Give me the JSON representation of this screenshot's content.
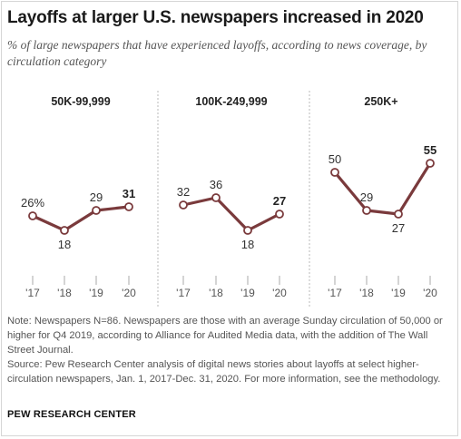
{
  "header": {
    "title": "Layoffs at larger U.S. newspapers increased in 2020",
    "subtitle": "% of large newspapers that have experienced layoffs, according to news coverage, by circulation category"
  },
  "chart_data": [
    {
      "type": "line",
      "title": "50K-99,999",
      "categories": [
        "'17",
        "'18",
        "'19",
        "'20"
      ],
      "series": [
        {
          "values": [
            26,
            18,
            29,
            31
          ]
        }
      ],
      "labels": [
        "26%",
        "18",
        "29",
        "31"
      ],
      "bold_last": true
    },
    {
      "type": "line",
      "title": "100K-249,999",
      "categories": [
        "'17",
        "'18",
        "'19",
        "'20"
      ],
      "series": [
        {
          "values": [
            32,
            36,
            18,
            27
          ]
        }
      ],
      "labels": [
        "32",
        "36",
        "18",
        "27"
      ],
      "bold_last": true
    },
    {
      "type": "line",
      "title": "250K+",
      "categories": [
        "'17",
        "'18",
        "'19",
        "'20"
      ],
      "series": [
        {
          "values": [
            50,
            29,
            27,
            55
          ]
        }
      ],
      "labels": [
        "50",
        "29",
        "27",
        "55"
      ],
      "bold_last": true
    }
  ],
  "colors": {
    "line": "#7a3a3c",
    "marker_fill": "#ffffff",
    "divider": "#b8b8b8",
    "axis": "#aaaaaa"
  },
  "notes": {
    "note": "Note: Newspapers N=86. Newspapers are those with an average Sunday circulation of 50,000 or higher for Q4 2019, according to Alliance for Audited Media data, with the addition of The Wall Street Journal.",
    "source": "Source: Pew Research Center analysis of digital news stories about layoffs at select higher-circulation newspapers, Jan. 1, 2017-Dec. 31, 2020. For more information, see the methodology."
  },
  "footer": {
    "brand": "PEW RESEARCH CENTER"
  }
}
